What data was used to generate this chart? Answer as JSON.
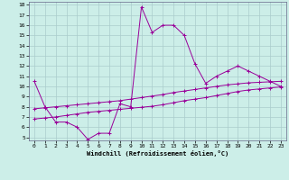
{
  "xlabel": "Windchill (Refroidissement éolien,°C)",
  "bg_color": "#cceee8",
  "line_color": "#990099",
  "grid_color": "#aacccc",
  "xlim": [
    -0.5,
    23.5
  ],
  "ylim": [
    4.7,
    18.3
  ],
  "yticks": [
    5,
    6,
    7,
    8,
    9,
    10,
    11,
    12,
    13,
    14,
    15,
    16,
    17,
    18
  ],
  "xticks": [
    0,
    1,
    2,
    3,
    4,
    5,
    6,
    7,
    8,
    9,
    10,
    11,
    12,
    13,
    14,
    15,
    16,
    17,
    18,
    19,
    20,
    21,
    22,
    23
  ],
  "series1_x": [
    0,
    1,
    2,
    3,
    4,
    5,
    6,
    7,
    8,
    9,
    10,
    11,
    12,
    13,
    14,
    15,
    16,
    17,
    18,
    19,
    20,
    21,
    22,
    23
  ],
  "series1_y": [
    10.5,
    8.0,
    6.5,
    6.5,
    6.0,
    4.8,
    5.4,
    5.4,
    8.3,
    8.0,
    17.8,
    15.3,
    16.0,
    16.0,
    15.0,
    12.2,
    10.3,
    11.0,
    11.5,
    12.0,
    11.5,
    11.0,
    10.5,
    10.0
  ],
  "series2_x": [
    0,
    1,
    2,
    3,
    4,
    5,
    6,
    7,
    8,
    9,
    10,
    11,
    12,
    13,
    14,
    15,
    16,
    17,
    18,
    19,
    20,
    21,
    22,
    23
  ],
  "series2_y": [
    6.8,
    6.9,
    7.0,
    7.15,
    7.3,
    7.45,
    7.55,
    7.65,
    7.75,
    7.85,
    7.95,
    8.05,
    8.2,
    8.4,
    8.6,
    8.75,
    8.9,
    9.1,
    9.3,
    9.5,
    9.65,
    9.75,
    9.85,
    9.95
  ],
  "series3_x": [
    0,
    1,
    2,
    3,
    4,
    5,
    6,
    7,
    8,
    9,
    10,
    11,
    12,
    13,
    14,
    15,
    16,
    17,
    18,
    19,
    20,
    21,
    22,
    23
  ],
  "series3_y": [
    7.8,
    7.9,
    8.0,
    8.1,
    8.2,
    8.3,
    8.4,
    8.5,
    8.6,
    8.75,
    8.9,
    9.05,
    9.2,
    9.4,
    9.55,
    9.7,
    9.85,
    10.0,
    10.15,
    10.25,
    10.35,
    10.4,
    10.45,
    10.5
  ]
}
